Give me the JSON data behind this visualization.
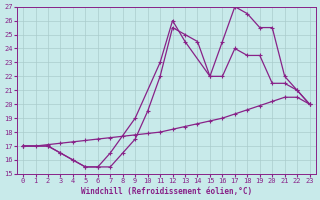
{
  "xlabel": "Windchill (Refroidissement éolien,°C)",
  "xlim": [
    -0.5,
    23.5
  ],
  "ylim": [
    15,
    27
  ],
  "xticks": [
    0,
    1,
    2,
    3,
    4,
    5,
    6,
    7,
    8,
    9,
    10,
    11,
    12,
    13,
    14,
    15,
    16,
    17,
    18,
    19,
    20,
    21,
    22,
    23
  ],
  "yticks": [
    15,
    16,
    17,
    18,
    19,
    20,
    21,
    22,
    23,
    24,
    25,
    26,
    27
  ],
  "background_color": "#c8eaea",
  "line_color": "#882288",
  "grid_color": "#aacccc",
  "line1_x": [
    0,
    1,
    2,
    3,
    4,
    5,
    6,
    7,
    8,
    9,
    10,
    11,
    12,
    13,
    14,
    15,
    16,
    17,
    18,
    19,
    20,
    21,
    22,
    23
  ],
  "line1_y": [
    17,
    17,
    17.1,
    17.2,
    17.3,
    17.4,
    17.5,
    17.6,
    17.7,
    17.8,
    17.9,
    18.0,
    18.2,
    18.4,
    18.6,
    18.8,
    19.0,
    19.3,
    19.6,
    19.9,
    20.2,
    20.5,
    20.5,
    20.0
  ],
  "line2_x": [
    0,
    2,
    3,
    4,
    5,
    6,
    7,
    8,
    9,
    10,
    11,
    12,
    13,
    14,
    15,
    16,
    17,
    18,
    19,
    20,
    21,
    22,
    23
  ],
  "line2_y": [
    17,
    17,
    16.5,
    16.0,
    15.5,
    15.5,
    15.5,
    16.5,
    17.5,
    19.5,
    22.0,
    25.5,
    25.0,
    24.5,
    22.0,
    22.0,
    24.0,
    23.5,
    23.5,
    21.5,
    21.5,
    21.0,
    20.0
  ],
  "line3_x": [
    0,
    2,
    3,
    4,
    5,
    6,
    7,
    9,
    11,
    12,
    13,
    15,
    16,
    17,
    18,
    19,
    20,
    21,
    22,
    23
  ],
  "line3_y": [
    17,
    17,
    16.5,
    16.0,
    15.5,
    15.5,
    16.5,
    19.0,
    23.0,
    26.0,
    24.5,
    22.0,
    24.5,
    27.0,
    26.5,
    25.5,
    25.5,
    22.0,
    21.0,
    20.0
  ]
}
